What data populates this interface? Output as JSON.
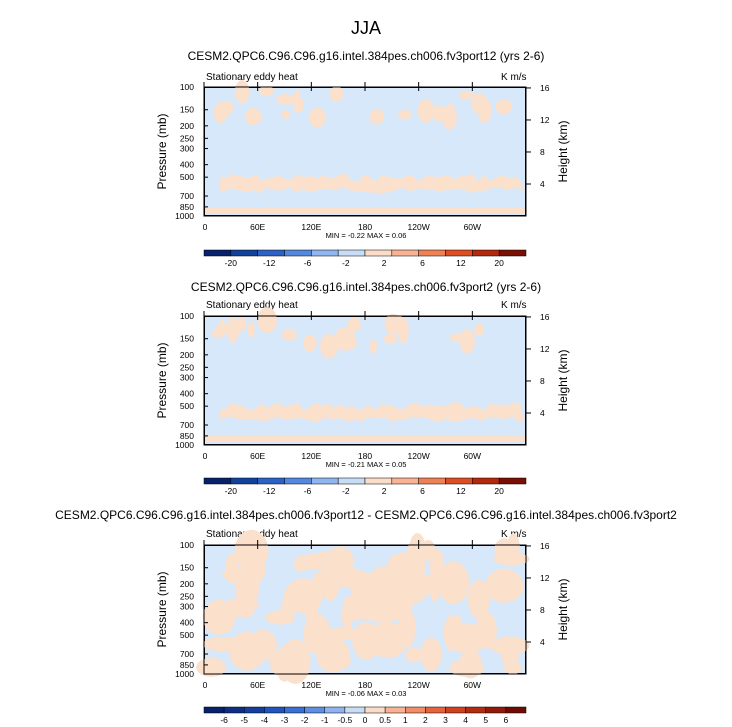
{
  "title": "JJA",
  "chart_data": [
    {
      "type": "heatmap",
      "title": "CESM2.QPC6.C96.C96.g16.intel.384pes.ch006.fv3port12 (yrs 2-6)",
      "subtitle_left": "Stationary eddy heat",
      "subtitle_right": "K m/s",
      "ylabel_left": "Pressure (mb)",
      "ylabel_right": "Height (km)",
      "x_ticks": [
        "0",
        "60E",
        "120E",
        "180",
        "120W",
        "60W"
      ],
      "y_ticks_left": [
        "100",
        "150",
        "200",
        "250",
        "300",
        "400",
        "500",
        "700",
        "850",
        "1000"
      ],
      "y_ticks_right": [
        "16",
        "12",
        "8",
        "4"
      ],
      "min": -0.22,
      "max": 0.06,
      "minmax_text": "MIN = -0.22   MAX = 0.06",
      "colorbar_labels": [
        "-20",
        "-12",
        "-6",
        "-2",
        "2",
        "6",
        "12",
        "20"
      ]
    },
    {
      "type": "heatmap",
      "title": "CESM2.QPC6.C96.C96.g16.intel.384pes.ch006.fv3port2 (yrs 2-6)",
      "subtitle_left": "Stationary eddy heat",
      "subtitle_right": "K m/s",
      "ylabel_left": "Pressure (mb)",
      "ylabel_right": "Height (km)",
      "x_ticks": [
        "0",
        "60E",
        "120E",
        "180",
        "120W",
        "60W"
      ],
      "y_ticks_left": [
        "100",
        "150",
        "200",
        "250",
        "300",
        "400",
        "500",
        "700",
        "850",
        "1000"
      ],
      "y_ticks_right": [
        "16",
        "12",
        "8",
        "4"
      ],
      "min": -0.21,
      "max": 0.05,
      "minmax_text": "MIN = -0.21   MAX = 0.05",
      "colorbar_labels": [
        "-20",
        "-12",
        "-6",
        "-2",
        "2",
        "6",
        "12",
        "20"
      ]
    },
    {
      "type": "heatmap",
      "title": "CESM2.QPC6.C96.C96.g16.intel.384pes.ch006.fv3port12 - CESM2.QPC6.C96.C96.g16.intel.384pes.ch006.fv3port2",
      "subtitle_left": "Stationary eddy heat",
      "subtitle_right": "K m/s",
      "ylabel_left": "Pressure (mb)",
      "ylabel_right": "Height (km)",
      "x_ticks": [
        "0",
        "60E",
        "120E",
        "180",
        "120W",
        "60W"
      ],
      "y_ticks_left": [
        "100",
        "150",
        "200",
        "250",
        "300",
        "400",
        "500",
        "700",
        "850",
        "1000"
      ],
      "y_ticks_right": [
        "16",
        "12",
        "8",
        "4"
      ],
      "min": -0.06,
      "max": 0.03,
      "minmax_text": "MIN = -0.06   MAX = 0.03",
      "colorbar_labels": [
        "-6",
        "-5",
        "-4",
        "-3",
        "-2",
        "-1",
        "-0.5",
        "0",
        "0.5",
        "1",
        "2",
        "3",
        "4",
        "5",
        "6"
      ]
    }
  ],
  "colors": {
    "negative_small": "#d6e8fa",
    "positive_small": "#fbe0cc",
    "colorbar_12": [
      "#08216b",
      "#10429c",
      "#2c62c6",
      "#5488de",
      "#8fb6ee",
      "#c8dcf6",
      "#fbdcc6",
      "#f8b294",
      "#ef8156",
      "#dd4e22",
      "#b3290e",
      "#7a0f04"
    ],
    "colorbar_16": [
      "#08216b",
      "#0c2f85",
      "#133f9f",
      "#1f55bd",
      "#3a70d3",
      "#5e8ee2",
      "#8fb3ef",
      "#c8dcf6",
      "#fbdcc6",
      "#f8b294",
      "#f18c66",
      "#e6643b",
      "#d0421f",
      "#b22c10",
      "#911a08",
      "#700b03"
    ]
  }
}
